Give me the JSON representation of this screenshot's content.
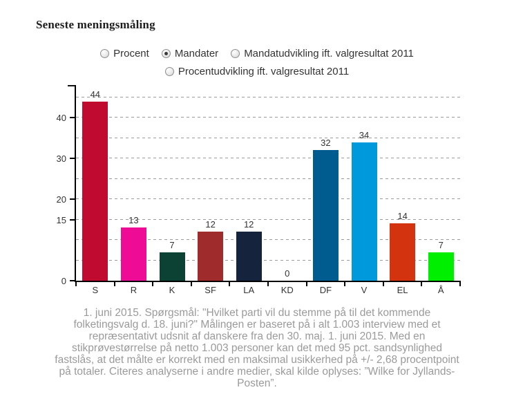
{
  "title": "Seneste meningsmåling",
  "controls": {
    "options": [
      {
        "label": "Procent",
        "selected": false
      },
      {
        "label": "Mandater",
        "selected": true
      },
      {
        "label": "Mandatudvikling ift. valgresultat 2011",
        "selected": false
      },
      {
        "label": "Procentudvikling ift. valgresultat 2011",
        "selected": false
      }
    ]
  },
  "chart_data": {
    "type": "bar",
    "title": "",
    "xlabel": "",
    "ylabel": "",
    "categories": [
      "S",
      "R",
      "K",
      "SF",
      "LA",
      "KD",
      "DF",
      "V",
      "EL",
      "Å"
    ],
    "values": [
      44,
      13,
      7,
      12,
      12,
      0,
      32,
      34,
      14,
      7
    ],
    "bar_colors": [
      "#c00a30",
      "#ee0c96",
      "#0b4233",
      "#a02b2d",
      "#16233c",
      null,
      "#005c8e",
      "#0099dc",
      "#d43310",
      "#00ee00"
    ],
    "ylim": [
      0,
      48
    ],
    "y_tick_labels": [
      0,
      15,
      20,
      30,
      40
    ],
    "gridlines": [
      5,
      10,
      15,
      20,
      25,
      30,
      35,
      40,
      45
    ],
    "grid": "horizontal-dashed",
    "legend": "none",
    "value_labels_shown": true
  },
  "footer": {
    "lines": [
      "1. juni 2015. Spørgsmål: \"Hvilket parti vil du stemme på til det kommende",
      "folketingsvalg d. 18. juni?\" Målingen er baseret på i alt 1.003 interview med et",
      "repræsentativt udsnit af danskere fra den 30. maj. 1. juni 2015. Med en",
      "stikprøvestørrelse på netto 1.003 personer kan det med 95 pct. sandsynlighed",
      "fastslås, at det målte er korrekt med en maksimal usikkerhed på +/- 2,68 procentpoint",
      "på totaler. Citeres analyserne i andre medier, skal kilde oplyses: ”Wilke for Jyllands-",
      "Posten”."
    ]
  }
}
